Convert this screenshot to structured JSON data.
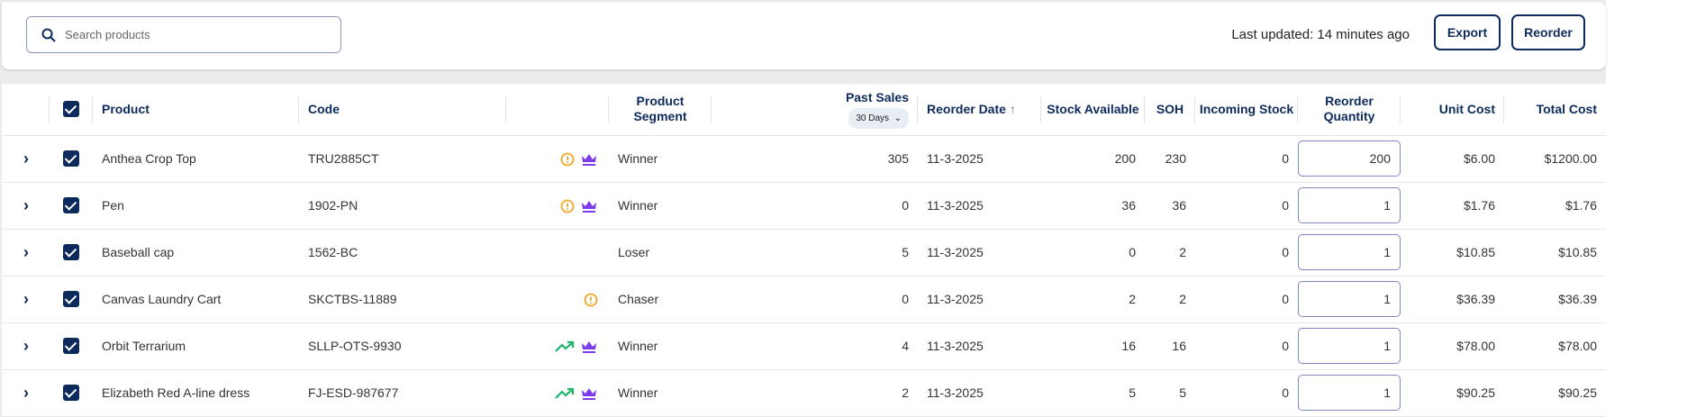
{
  "toolbar": {
    "search_placeholder": "Search products",
    "last_updated": "Last updated: 14 minutes ago",
    "export_label": "Export",
    "reorder_label": "Reorder"
  },
  "columns": {
    "product": "Product",
    "code": "Code",
    "segment": "Product Segment",
    "past_sales": "Past Sales",
    "past_sales_period": "30 Days",
    "reorder_date": "Reorder Date",
    "stock_available": "Stock Available",
    "soh": "SOH",
    "incoming": "Incoming Stock",
    "reorder_qty": "Reorder Quantity",
    "unit_cost": "Unit Cost",
    "total_cost": "Total Cost"
  },
  "colors": {
    "navy": "#0d2a5c",
    "warning": "#f5a623",
    "crown": "#7c3aed",
    "trend": "#1db56a"
  },
  "rows": [
    {
      "product": "Anthea Crop Top",
      "code": "TRU2885CT",
      "icons": [
        "warning-icon",
        "crown-icon"
      ],
      "segment": "Winner",
      "past_sales": "305",
      "reorder_date": "11-3-2025",
      "stock_available": "200",
      "soh": "230",
      "incoming": "0",
      "reorder_qty": "200",
      "unit_cost": "$6.00",
      "total_cost": "$1200.00",
      "checked": true
    },
    {
      "product": "Pen",
      "code": "1902-PN",
      "icons": [
        "warning-icon",
        "crown-icon"
      ],
      "segment": "Winner",
      "past_sales": "0",
      "reorder_date": "11-3-2025",
      "stock_available": "36",
      "soh": "36",
      "incoming": "0",
      "reorder_qty": "1",
      "unit_cost": "$1.76",
      "total_cost": "$1.76",
      "checked": true
    },
    {
      "product": "Baseball cap",
      "code": "1562-BC",
      "icons": [],
      "segment": "Loser",
      "past_sales": "5",
      "reorder_date": "11-3-2025",
      "stock_available": "0",
      "soh": "2",
      "incoming": "0",
      "reorder_qty": "1",
      "unit_cost": "$10.85",
      "total_cost": "$10.85",
      "checked": true
    },
    {
      "product": "Canvas Laundry Cart",
      "code": "SKCTBS-11889",
      "icons": [
        "warning-icon"
      ],
      "segment": "Chaser",
      "past_sales": "0",
      "reorder_date": "11-3-2025",
      "stock_available": "2",
      "soh": "2",
      "incoming": "0",
      "reorder_qty": "1",
      "unit_cost": "$36.39",
      "total_cost": "$36.39",
      "checked": true
    },
    {
      "product": "Orbit Terrarium",
      "code": "SLLP-OTS-9930",
      "icons": [
        "trending-up-icon",
        "crown-icon"
      ],
      "segment": "Winner",
      "past_sales": "4",
      "reorder_date": "11-3-2025",
      "stock_available": "16",
      "soh": "16",
      "incoming": "0",
      "reorder_qty": "1",
      "unit_cost": "$78.00",
      "total_cost": "$78.00",
      "checked": true
    },
    {
      "product": "Elizabeth Red A-line dress",
      "code": "FJ-ESD-987677",
      "icons": [
        "trending-up-icon",
        "crown-icon"
      ],
      "segment": "Winner",
      "past_sales": "2",
      "reorder_date": "11-3-2025",
      "stock_available": "5",
      "soh": "5",
      "incoming": "0",
      "reorder_qty": "1",
      "unit_cost": "$90.25",
      "total_cost": "$90.25",
      "checked": true
    }
  ]
}
